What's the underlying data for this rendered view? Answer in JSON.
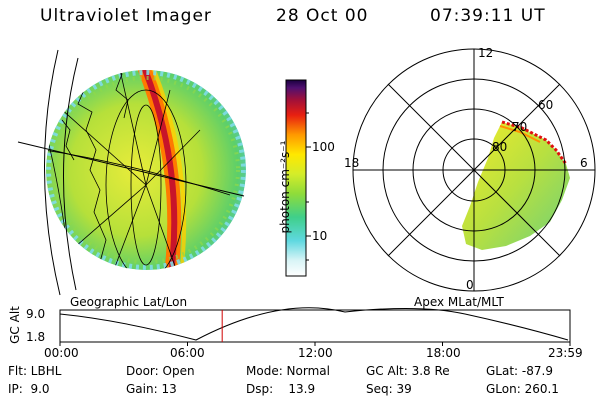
{
  "header": {
    "instrument": "Ultraviolet Imager",
    "date": "28 Oct 00",
    "time": "07:39:11 UT"
  },
  "colorbar": {
    "unit_label": "photon cm⁻²s⁻¹",
    "ticks": [
      "100",
      "10"
    ]
  },
  "left_panel": {
    "caption": "Geographic Lat/Lon"
  },
  "right_panel": {
    "caption": "Apex MLat/MLT",
    "mlt_labels": [
      "12",
      "18",
      "6",
      "0"
    ],
    "mlat_labels": [
      "60",
      "70",
      "80"
    ]
  },
  "altitude_plot": {
    "ylabel": "GC Alt",
    "yticks": [
      "9.0",
      "1.8"
    ],
    "xticks": [
      "00:00",
      "06:00",
      "12:00",
      "18:00",
      "23:59"
    ],
    "current_time_fraction": 0.318
  },
  "info": {
    "flt": "Flt: LBHL",
    "ip": "IP:  9.0",
    "door": "Door: Open",
    "gain": "Gain: 13",
    "mode": "Mode: Normal",
    "dsp": "Dsp:    13.9",
    "gcalt": "GC Alt: 3.8 Re",
    "seq": "Seq: 39",
    "glat": "GLat: -87.9",
    "glon": "GLon: 260.1"
  }
}
